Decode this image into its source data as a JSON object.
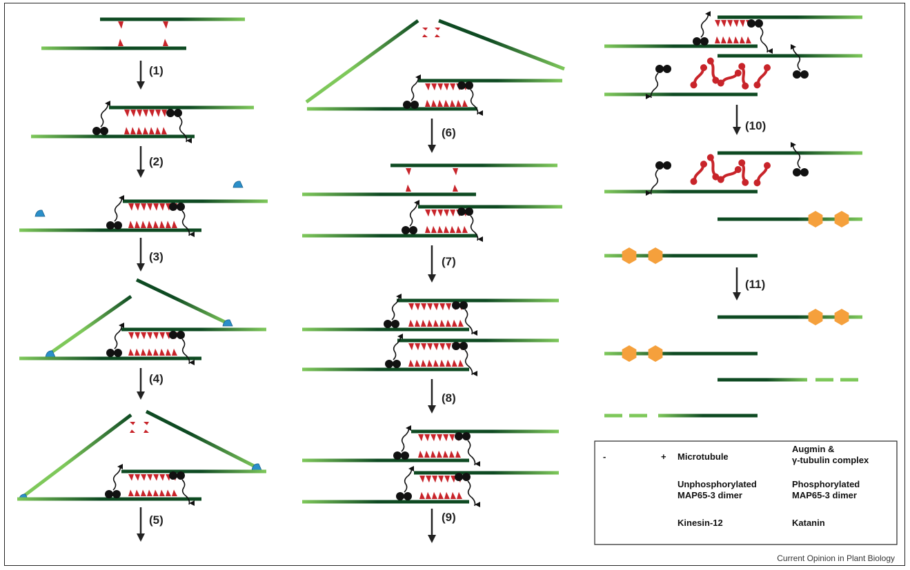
{
  "steps": [
    "(1)",
    "(2)",
    "(3)",
    "(4)",
    "(5)",
    "(6)",
    "(7)",
    "(8)",
    "(9)",
    "(10)",
    "(11)"
  ],
  "legend": {
    "microtubule": {
      "minus": "-",
      "plus": "+",
      "label": "Microtubule"
    },
    "augmin": {
      "line1": "Augmin &",
      "line2": "γ-tubulin complex"
    },
    "unphos": {
      "line1": "Unphosphorylated",
      "line2": "MAP65-3 dimer"
    },
    "phos": {
      "line1": "Phosphorylated",
      "line2": "MAP65-3 dimer"
    },
    "kinesin": {
      "label": "Kinesin-12"
    },
    "katanin": {
      "label": "Katanin"
    }
  },
  "credit": "Current Opinion in Plant Biology",
  "colors": {
    "mt_light": "#7ec85a",
    "mt_dark": "#0e4a22",
    "map65": "#c8242a",
    "kinesin": "#111111",
    "augmin": "#2a8fc9",
    "katanin": "#f5a03c"
  }
}
